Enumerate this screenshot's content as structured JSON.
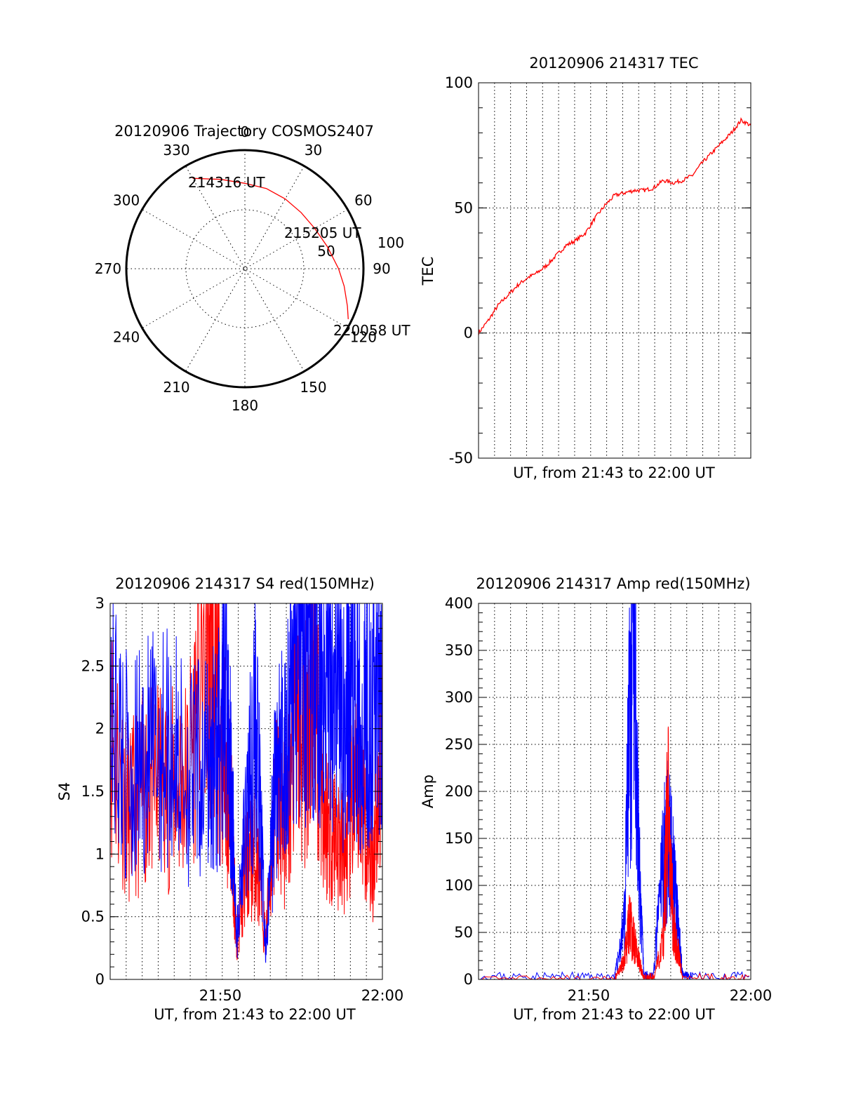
{
  "colors": {
    "red": "#ff0000",
    "blue": "#0000ff",
    "grid": "#000000"
  },
  "chart_data": [
    {
      "id": "trajectory",
      "type": "scatter",
      "subtype": "polar",
      "title": "20120906 Trajectory COSMOS2407",
      "azimuth_labels": [
        "0",
        "30",
        "60",
        "90",
        "120",
        "150",
        "180",
        "210",
        "240",
        "270",
        "300",
        "330"
      ],
      "radial_labels": [
        "50",
        "100"
      ],
      "radial_range": [
        0,
        100
      ],
      "annotations": [
        "214316 UT",
        "215205 UT",
        "220058 UT"
      ],
      "series": [
        {
          "color": "red",
          "points": [
            {
              "az": 330,
              "r": 88
            },
            {
              "az": 345,
              "r": 78
            },
            {
              "az": 0,
              "r": 72
            },
            {
              "az": 15,
              "r": 70
            },
            {
              "az": 30,
              "r": 68
            },
            {
              "az": 45,
              "r": 67
            },
            {
              "az": 60,
              "r": 68
            },
            {
              "az": 75,
              "r": 72
            },
            {
              "az": 90,
              "r": 79
            },
            {
              "az": 100,
              "r": 85
            },
            {
              "az": 110,
              "r": 92
            },
            {
              "az": 116,
              "r": 97
            }
          ]
        }
      ],
      "grid": true
    },
    {
      "id": "tec",
      "type": "line",
      "title": "20120906 214317 TEC",
      "xlabel": "UT, from 21:43 to 22:00 UT",
      "ylabel": "TEC",
      "ylim": [
        -50,
        100
      ],
      "yticks": [
        "-50",
        "0",
        "50",
        "100"
      ],
      "xlim": [
        21.72,
        22.0
      ],
      "series": [
        {
          "color": "red",
          "x": [
            21.72,
            21.73,
            21.74,
            21.75,
            21.76,
            21.77,
            21.78,
            21.79,
            21.8,
            21.81,
            21.82,
            21.83,
            21.84,
            21.85,
            21.86,
            21.87,
            21.88,
            21.89,
            21.9,
            21.91,
            21.92,
            21.93,
            21.94,
            21.95,
            21.96,
            21.97,
            21.98,
            21.99,
            22.0
          ],
          "y": [
            0,
            5,
            11,
            15,
            19,
            22,
            24,
            27,
            31,
            35,
            37,
            40,
            46,
            51,
            55,
            56,
            57,
            57,
            58,
            61,
            60,
            61,
            63,
            68,
            72,
            76,
            80,
            85,
            83
          ]
        }
      ],
      "grid": true
    },
    {
      "id": "s4",
      "type": "line",
      "title": "20120906 214317 S4 red(150MHz)",
      "xlabel": "UT, from 21:43 to 22:00 UT",
      "ylabel": "S4",
      "ylim": [
        0,
        3
      ],
      "yticks": [
        "0",
        "0.5",
        "1",
        "1.5",
        "2",
        "2.5",
        "3"
      ],
      "xticks": [
        "21:50",
        "22:00"
      ],
      "xtick_values": [
        21.8333,
        22.0
      ],
      "xlim": [
        21.72,
        22.0
      ],
      "series": [
        {
          "color": "red",
          "x": [
            21.72,
            21.74,
            21.76,
            21.78,
            21.8,
            21.82,
            21.83,
            21.84,
            21.845,
            21.85,
            21.86,
            21.87,
            21.88,
            21.89,
            21.9,
            21.91,
            21.92,
            21.93,
            21.94,
            21.95,
            21.96,
            21.97,
            21.98,
            21.99,
            22.0
          ],
          "y": [
            2.0,
            1.3,
            1.6,
            1.5,
            1.6,
            2.9,
            2.2,
            1.6,
            1.2,
            0.3,
            0.9,
            1.0,
            0.3,
            1.5,
            1.2,
            2.0,
            1.8,
            2.5,
            1.3,
            1.2,
            1.0,
            1.4,
            1.5,
            0.9,
            2.0
          ]
        },
        {
          "color": "blue",
          "x": [
            21.72,
            21.74,
            21.76,
            21.78,
            21.8,
            21.82,
            21.83,
            21.84,
            21.845,
            21.85,
            21.86,
            21.87,
            21.88,
            21.89,
            21.9,
            21.91,
            21.92,
            21.93,
            21.94,
            21.95,
            21.96,
            21.97,
            21.98,
            21.99,
            22.0
          ],
          "y": [
            2.2,
            1.6,
            1.8,
            1.9,
            1.6,
            1.7,
            1.8,
            2.2,
            1.5,
            0.3,
            1.3,
            2.1,
            0.2,
            1.6,
            1.8,
            2.6,
            2.6,
            2.7,
            2.6,
            2.6,
            2.0,
            2.5,
            2.1,
            2.4,
            2.5
          ]
        }
      ],
      "grid": true
    },
    {
      "id": "amp",
      "type": "line",
      "title": "20120906 214317 Amp red(150MHz)",
      "xlabel": "UT, from 21:43 to 22:00 UT",
      "ylabel": "Amp",
      "ylim": [
        0,
        400
      ],
      "yticks": [
        "0",
        "50",
        "100",
        "150",
        "200",
        "250",
        "300",
        "350",
        "400"
      ],
      "xticks": [
        "21:50",
        "22:00"
      ],
      "xtick_values": [
        21.8333,
        22.0
      ],
      "xlim": [
        21.72,
        22.0
      ],
      "series": [
        {
          "color": "blue",
          "x": [
            21.72,
            21.8,
            21.86,
            21.87,
            21.875,
            21.88,
            21.885,
            21.89,
            21.9,
            21.91,
            21.915,
            21.92,
            21.925,
            21.93,
            21.94,
            22.0
          ],
          "y": [
            3,
            3,
            3,
            60,
            250,
            370,
            120,
            5,
            5,
            130,
            150,
            110,
            60,
            5,
            3,
            3
          ]
        },
        {
          "color": "red",
          "x": [
            21.72,
            21.86,
            21.87,
            21.875,
            21.88,
            21.885,
            21.89,
            21.9,
            21.91,
            21.915,
            21.92,
            21.925,
            21.93,
            22.0
          ],
          "y": [
            0,
            0,
            20,
            60,
            40,
            20,
            2,
            2,
            40,
            200,
            60,
            30,
            2,
            0
          ]
        }
      ],
      "grid": true
    }
  ]
}
